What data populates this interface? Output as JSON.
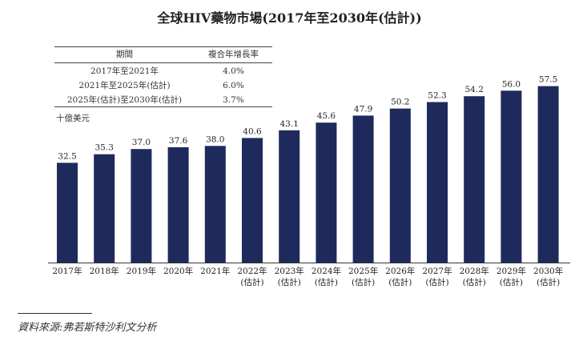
{
  "chart_data": {
    "type": "bar",
    "title": "全球HIV藥物市場(2017年至2030年(估計))",
    "ylabel": "十億美元",
    "categories": [
      [
        "2017年"
      ],
      [
        "2018年"
      ],
      [
        "2019年"
      ],
      [
        "2020年"
      ],
      [
        "2021年"
      ],
      [
        "2022年",
        "(估計)"
      ],
      [
        "2023年",
        "(估計)"
      ],
      [
        "2024年",
        "(估計)"
      ],
      [
        "2025年",
        "(估計)"
      ],
      [
        "2026年",
        "(估計)"
      ],
      [
        "2027年",
        "(估計)"
      ],
      [
        "2028年",
        "(估計)"
      ],
      [
        "2029年",
        "(估計)"
      ],
      [
        "2030年",
        "(估計)"
      ]
    ],
    "values": [
      32.5,
      35.3,
      37.0,
      37.6,
      38.0,
      40.6,
      43.1,
      45.6,
      47.9,
      50.2,
      52.3,
      54.2,
      56.0,
      57.5
    ],
    "value_labels": [
      "32.5",
      "35.3",
      "37.0",
      "37.6",
      "38.0",
      "40.6",
      "43.1",
      "45.6",
      "47.9",
      "50.2",
      "52.3",
      "54.2",
      "56.0",
      "57.5"
    ],
    "ylim": [
      0,
      60
    ],
    "bar_color": "#1f2a5c",
    "grid": false
  },
  "cagr_table": {
    "headers": [
      "期間",
      "複合年增長率"
    ],
    "rows": [
      [
        "2017年至2021年",
        "4.0%"
      ],
      [
        "2021年至2025年(估計)",
        "6.0%"
      ],
      [
        "2025年(估計)至2030年(估計)",
        "3.7%"
      ]
    ]
  },
  "source_note": "資料來源:弗若斯特沙利文分析"
}
